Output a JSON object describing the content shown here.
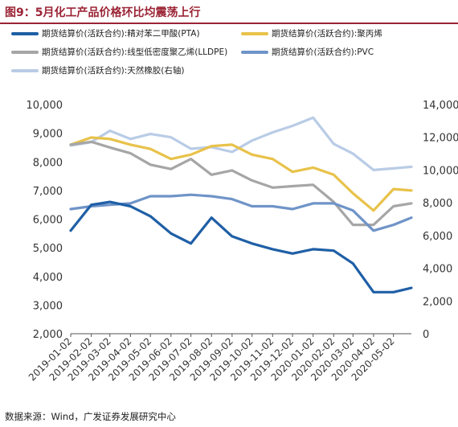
{
  "figure": {
    "title": "图9：5月化工产品价格环比均震荡上行",
    "source": "数据来源：Wind，广发证券发展研究中心"
  },
  "colors": {
    "title": "#9b2335",
    "pta": "#1f5fa6",
    "pp": "#e8c24a",
    "lldpe": "#a6a6a6",
    "pvc": "#6f94c8",
    "rubber": "#b9cce6"
  },
  "chart_data": {
    "type": "line",
    "x": [
      "2019-01-02",
      "2019-02-02",
      "2019-03-02",
      "2019-04-02",
      "2019-05-02",
      "2019-06-02",
      "2019-07-02",
      "2019-08-02",
      "2019-09-02",
      "2019-10-02",
      "2019-11-02",
      "2019-12-02",
      "2020-01-02",
      "2020-02-02",
      "2020-03-02",
      "2020-04-02",
      "2020-05-02",
      "2020-05-29"
    ],
    "x_tick_labels": [
      "2019-01-02",
      "2019-02-02",
      "2019-03-02",
      "2019-04-02",
      "2019-05-02",
      "2019-06-02",
      "2019-07-02",
      "2019-08-02",
      "2019-09-02",
      "2019-10-02",
      "2019-11-02",
      "2019-12-02",
      "2020-01-02",
      "2020-02-02",
      "2020-03-02",
      "2020-04-02",
      "2020-05-02"
    ],
    "y_left": {
      "min": 2000,
      "max": 10000,
      "ticks": [
        2000,
        3000,
        4000,
        5000,
        6000,
        7000,
        8000,
        9000,
        10000
      ],
      "tick_labels": [
        "2,000",
        "3,000",
        "4,000",
        "5,000",
        "6,000",
        "7,000",
        "8,000",
        "9,000",
        "10,000"
      ]
    },
    "y_right": {
      "min": 0,
      "max": 14000,
      "ticks": [
        0,
        2000,
        4000,
        6000,
        8000,
        10000,
        12000,
        14000
      ],
      "tick_labels": [
        "0",
        "2,000",
        "4,000",
        "6,000",
        "8,000",
        "10,000",
        "12,000",
        "14,000"
      ]
    },
    "grid": false,
    "legend_position": "top",
    "series": [
      {
        "key": "pta",
        "name": "期货结算价(活跃合约):精对苯二甲酸(PTA)",
        "axis": "left",
        "values": [
          5600,
          6500,
          6600,
          6450,
          6100,
          5500,
          5150,
          6050,
          5400,
          5150,
          4950,
          4800,
          4950,
          4900,
          4450,
          3450,
          3450,
          3600
        ]
      },
      {
        "key": "pp",
        "name": "期货结算价(活跃合约):聚丙烯",
        "axis": "left",
        "values": [
          8600,
          8850,
          8800,
          8600,
          8450,
          8100,
          8250,
          8550,
          8600,
          8250,
          8100,
          7650,
          7800,
          7550,
          6900,
          6300,
          7050,
          7000
        ]
      },
      {
        "key": "lldpe",
        "name": "期货结算价(活跃合约):线型低密度聚乙烯(LLDPE)",
        "axis": "left",
        "values": [
          8600,
          8700,
          8500,
          8300,
          7900,
          7750,
          8100,
          7550,
          7700,
          7350,
          7100,
          7150,
          7200,
          6600,
          5800,
          5800,
          6450,
          6550
        ]
      },
      {
        "key": "pvc",
        "name": "期货结算价(活跃合约):PVC",
        "axis": "left",
        "values": [
          6350,
          6450,
          6500,
          6550,
          6800,
          6800,
          6850,
          6800,
          6700,
          6450,
          6450,
          6350,
          6550,
          6550,
          6300,
          5600,
          5800,
          6050
        ]
      },
      {
        "key": "rubber",
        "name": "期货结算价(活跃合约):天然橡胶(右轴)",
        "axis": "right",
        "values": [
          11500,
          11700,
          12400,
          11900,
          12200,
          12000,
          11300,
          11400,
          11100,
          11800,
          12300,
          12700,
          13200,
          11600,
          11000,
          10000,
          10100,
          10200
        ]
      }
    ]
  }
}
